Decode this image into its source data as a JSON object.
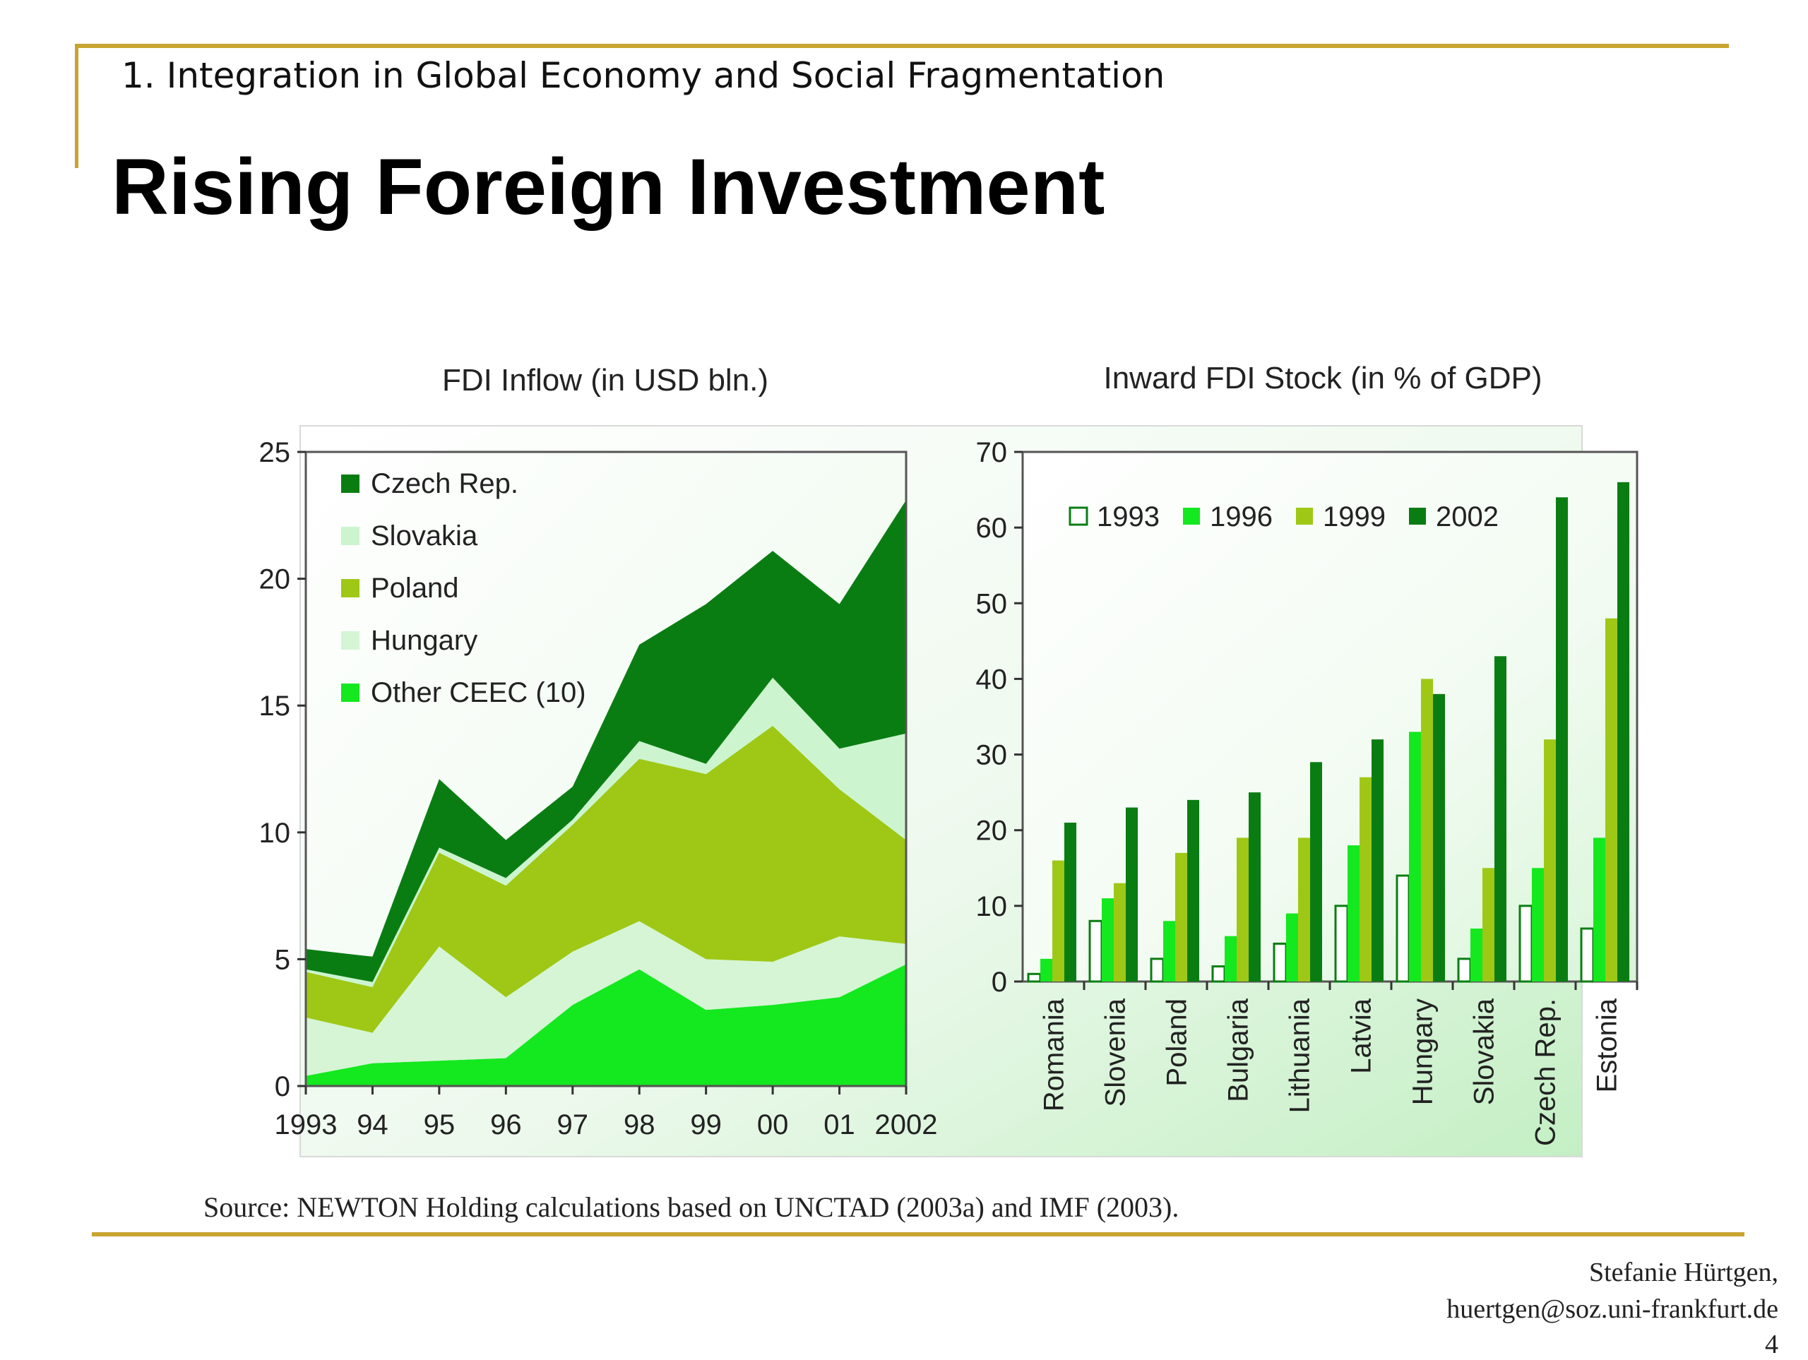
{
  "header": {
    "section": "1. Integration in Global Economy and Social Fragmentation",
    "title": "Rising Foreign Investment"
  },
  "source": "Source: NEWTON Holding calculations based on UNCTAD (2003a) and IMF (2003).",
  "footer": {
    "author": "Stefanie Hürtgen,",
    "email": "huertgen@soz.uni-frankfurt.de",
    "page": "4"
  },
  "colors": {
    "accent_gold": "#c8a431",
    "czech": "#0a7d12",
    "slovakia": "#ccf5cf",
    "poland": "#9ec815",
    "hungary": "#d5f5d5",
    "other": "#14e81f",
    "bar_1993": "#ffffff",
    "bar_1996": "#14e81f",
    "bar_1999": "#9ec815",
    "bar_2002": "#0a7d12"
  },
  "chart_data": [
    {
      "type": "area",
      "stacked": true,
      "title": "FDI Inflow (in USD bln.)",
      "xlabel": "",
      "ylabel": "",
      "x": [
        "1993",
        "94",
        "95",
        "96",
        "97",
        "98",
        "99",
        "00",
        "01",
        "2002"
      ],
      "ylim": [
        0,
        25
      ],
      "yticks": [
        0,
        5,
        10,
        15,
        20,
        25
      ],
      "grid": false,
      "legend_position": "top-left",
      "series": [
        {
          "name": "Other CEEC (10)",
          "color": "#14e81f",
          "values": [
            0.4,
            0.9,
            1.0,
            1.1,
            3.2,
            4.6,
            3.0,
            3.2,
            3.5,
            4.8
          ]
        },
        {
          "name": "Hungary",
          "color": "#d5f5d5",
          "values": [
            2.3,
            1.2,
            4.5,
            2.4,
            2.1,
            1.9,
            2.0,
            1.7,
            2.4,
            0.8
          ]
        },
        {
          "name": "Poland",
          "color": "#9ec815",
          "values": [
            1.8,
            1.8,
            3.7,
            4.4,
            5.0,
            6.4,
            7.3,
            9.3,
            5.8,
            4.1
          ]
        },
        {
          "name": "Slovakia",
          "color": "#ccf5cf",
          "values": [
            0.1,
            0.2,
            0.2,
            0.3,
            0.2,
            0.7,
            0.4,
            1.9,
            1.6,
            4.2
          ]
        },
        {
          "name": "Czech Rep.",
          "color": "#0a7d12",
          "values": [
            0.8,
            1.0,
            2.7,
            1.5,
            1.3,
            3.8,
            6.3,
            5.0,
            5.7,
            9.2
          ]
        }
      ]
    },
    {
      "type": "bar",
      "title": "Inward FDI Stock (in % of GDP)",
      "xlabel": "",
      "ylabel": "",
      "categories": [
        "Romania",
        "Slovenia",
        "Poland",
        "Bulgaria",
        "Lithuania",
        "Latvia",
        "Hungary",
        "Slovakia",
        "Czech Rep.",
        "Estonia"
      ],
      "ylim": [
        0,
        70
      ],
      "yticks": [
        0,
        10,
        20,
        30,
        40,
        50,
        60,
        70
      ],
      "grid": false,
      "legend_position": "top-left",
      "series": [
        {
          "name": "1993",
          "color": "#ffffff",
          "values": [
            1,
            8,
            3,
            2,
            5,
            10,
            14,
            3,
            10,
            7
          ]
        },
        {
          "name": "1996",
          "color": "#14e81f",
          "values": [
            3,
            11,
            8,
            6,
            9,
            18,
            33,
            7,
            15,
            19
          ]
        },
        {
          "name": "1999",
          "color": "#9ec815",
          "values": [
            16,
            13,
            17,
            19,
            19,
            27,
            40,
            15,
            32,
            48
          ]
        },
        {
          "name": "2002",
          "color": "#0a7d12",
          "values": [
            21,
            23,
            24,
            25,
            29,
            32,
            38,
            43,
            64,
            66
          ]
        }
      ]
    }
  ]
}
